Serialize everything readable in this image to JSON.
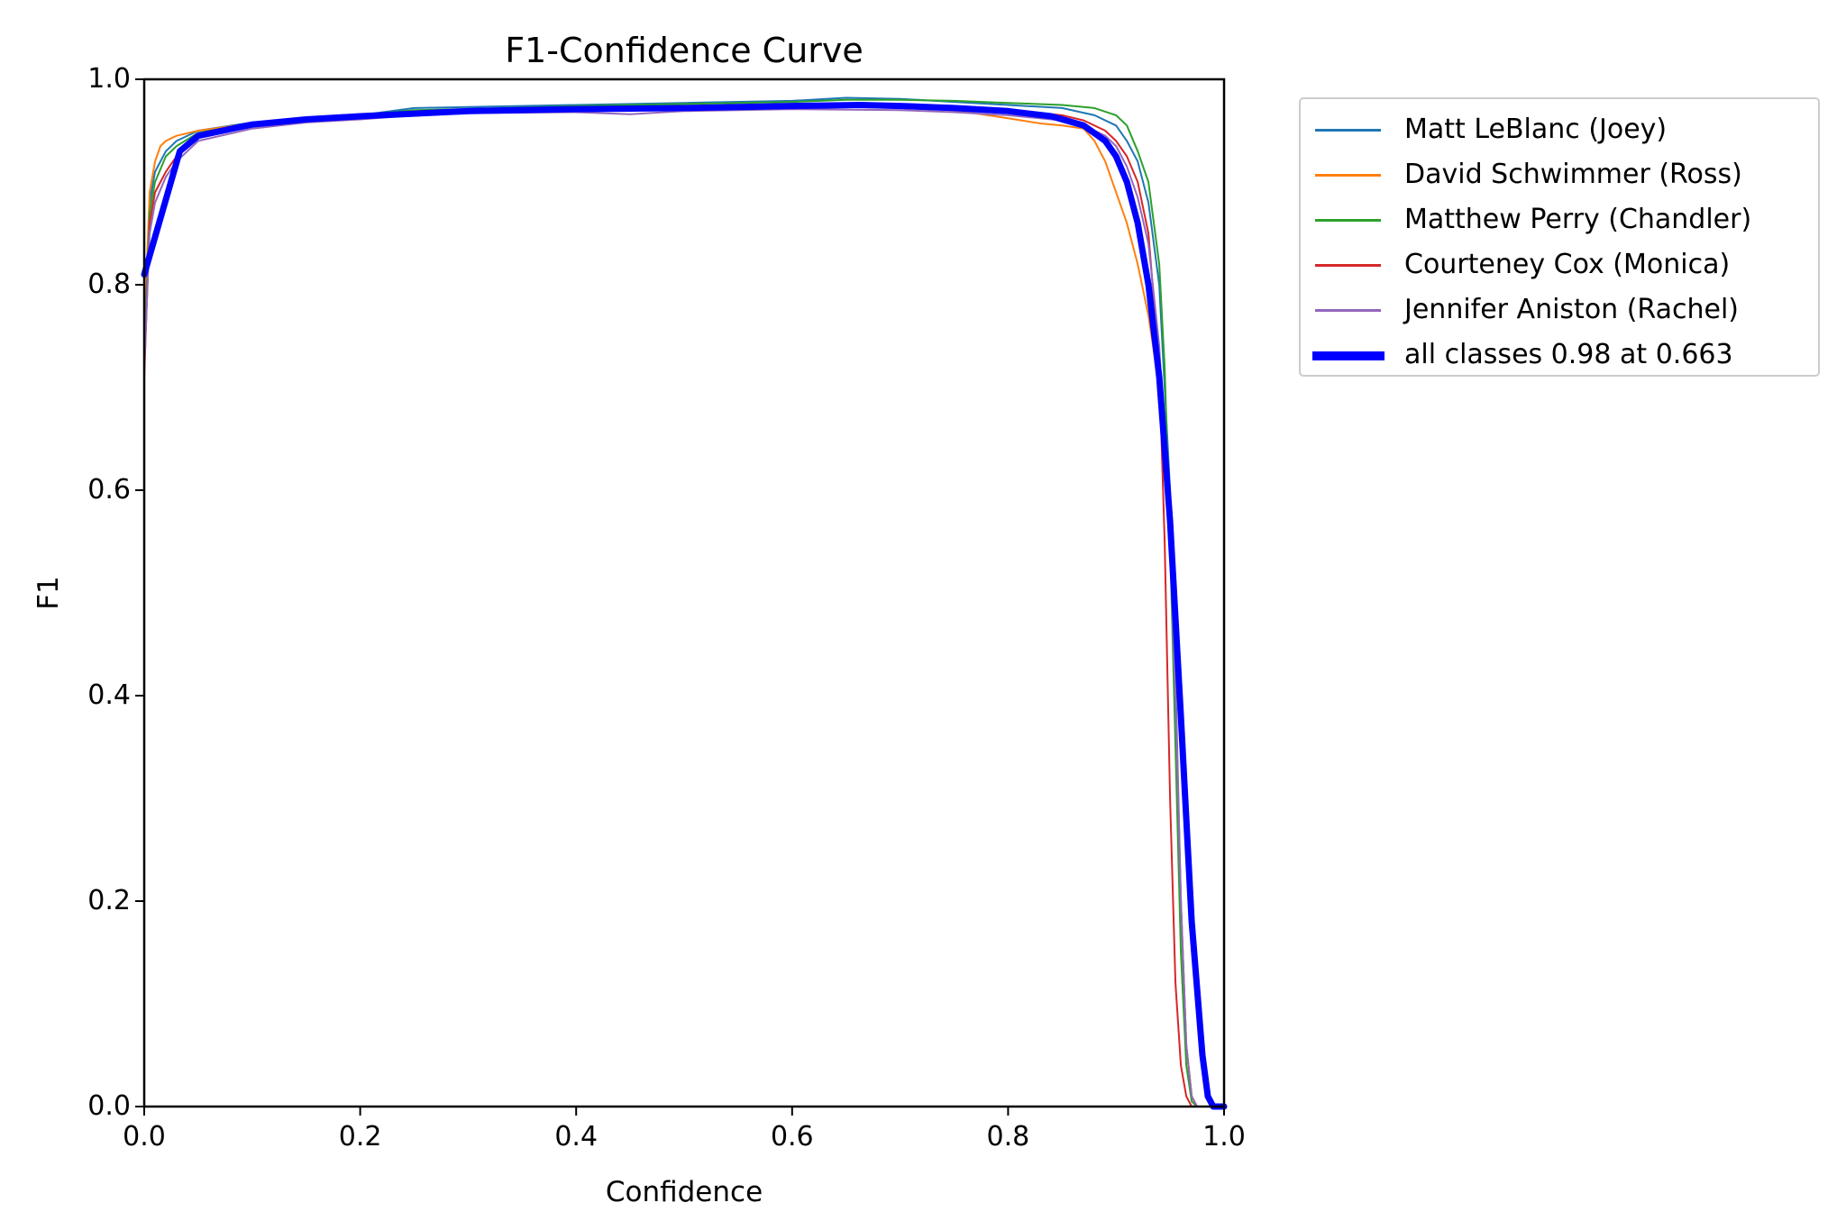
{
  "chart_data": {
    "type": "line",
    "title": "F1-Confidence Curve",
    "xlabel": "Confidence",
    "ylabel": "F1",
    "xlim": [
      0.0,
      1.0
    ],
    "ylim": [
      0.0,
      1.0
    ],
    "xticks": [
      "0.0",
      "0.2",
      "0.4",
      "0.6",
      "0.8",
      "1.0"
    ],
    "yticks": [
      "0.0",
      "0.2",
      "0.4",
      "0.6",
      "0.8",
      "1.0"
    ],
    "grid": false,
    "legend_position": "outside upper right",
    "series": [
      {
        "name": "Matt LeBlanc (Joey)",
        "color": "#1f77b4",
        "width": 2,
        "x": [
          0.0,
          0.005,
          0.01,
          0.02,
          0.03,
          0.05,
          0.1,
          0.15,
          0.2,
          0.25,
          0.3,
          0.4,
          0.5,
          0.6,
          0.65,
          0.7,
          0.75,
          0.8,
          0.85,
          0.88,
          0.9,
          0.91,
          0.92,
          0.93,
          0.94,
          0.95,
          0.955,
          0.96,
          0.965,
          0.97,
          0.975,
          1.0
        ],
        "y": [
          0.72,
          0.88,
          0.91,
          0.93,
          0.94,
          0.95,
          0.958,
          0.962,
          0.965,
          0.972,
          0.973,
          0.975,
          0.977,
          0.979,
          0.982,
          0.981,
          0.978,
          0.975,
          0.972,
          0.965,
          0.955,
          0.94,
          0.92,
          0.88,
          0.8,
          0.6,
          0.42,
          0.2,
          0.06,
          0.01,
          0.0,
          0.0
        ]
      },
      {
        "name": "David Schwimmer (Ross)",
        "color": "#ff7f0e",
        "width": 2,
        "x": [
          0.0,
          0.005,
          0.01,
          0.015,
          0.02,
          0.03,
          0.05,
          0.1,
          0.15,
          0.2,
          0.25,
          0.3,
          0.4,
          0.5,
          0.6,
          0.7,
          0.75,
          0.8,
          0.83,
          0.85,
          0.87,
          0.88,
          0.89,
          0.9,
          0.91,
          0.92,
          0.93,
          0.94,
          0.95,
          0.955,
          0.96,
          0.965,
          0.97,
          0.975,
          1.0
        ],
        "y": [
          0.75,
          0.89,
          0.92,
          0.935,
          0.94,
          0.945,
          0.95,
          0.957,
          0.96,
          0.962,
          0.966,
          0.968,
          0.97,
          0.972,
          0.974,
          0.972,
          0.97,
          0.962,
          0.957,
          0.955,
          0.952,
          0.94,
          0.92,
          0.89,
          0.86,
          0.82,
          0.77,
          0.7,
          0.55,
          0.4,
          0.2,
          0.06,
          0.01,
          0.0,
          0.0
        ]
      },
      {
        "name": "Matthew Perry (Chandler)",
        "color": "#2ca02c",
        "width": 2,
        "x": [
          0.0,
          0.005,
          0.01,
          0.02,
          0.03,
          0.05,
          0.1,
          0.15,
          0.2,
          0.25,
          0.3,
          0.4,
          0.5,
          0.6,
          0.65,
          0.7,
          0.75,
          0.8,
          0.85,
          0.88,
          0.9,
          0.91,
          0.92,
          0.93,
          0.94,
          0.945,
          0.95,
          0.955,
          0.96,
          0.965,
          0.97,
          0.975,
          1.0
        ],
        "y": [
          0.73,
          0.87,
          0.9,
          0.925,
          0.935,
          0.948,
          0.957,
          0.962,
          0.965,
          0.97,
          0.971,
          0.974,
          0.976,
          0.978,
          0.98,
          0.98,
          0.979,
          0.977,
          0.975,
          0.972,
          0.965,
          0.955,
          0.93,
          0.9,
          0.82,
          0.72,
          0.55,
          0.35,
          0.15,
          0.04,
          0.005,
          0.0,
          0.0
        ]
      },
      {
        "name": "Courteney Cox (Monica)",
        "color": "#d62728",
        "width": 2,
        "x": [
          0.0,
          0.005,
          0.01,
          0.02,
          0.03,
          0.05,
          0.1,
          0.15,
          0.2,
          0.25,
          0.3,
          0.4,
          0.5,
          0.6,
          0.7,
          0.75,
          0.8,
          0.85,
          0.87,
          0.89,
          0.9,
          0.91,
          0.92,
          0.93,
          0.94,
          0.945,
          0.95,
          0.955,
          0.96,
          0.965,
          0.97,
          1.0
        ],
        "y": [
          0.71,
          0.86,
          0.89,
          0.91,
          0.925,
          0.945,
          0.955,
          0.96,
          0.963,
          0.967,
          0.969,
          0.972,
          0.974,
          0.975,
          0.974,
          0.972,
          0.97,
          0.965,
          0.96,
          0.95,
          0.94,
          0.925,
          0.9,
          0.85,
          0.72,
          0.55,
          0.3,
          0.12,
          0.04,
          0.01,
          0.0,
          0.0
        ]
      },
      {
        "name": "Jennifer Aniston (Rachel)",
        "color": "#9467bd",
        "width": 2,
        "x": [
          0.0,
          0.005,
          0.01,
          0.02,
          0.03,
          0.05,
          0.1,
          0.15,
          0.2,
          0.25,
          0.3,
          0.4,
          0.45,
          0.5,
          0.6,
          0.7,
          0.75,
          0.8,
          0.85,
          0.87,
          0.89,
          0.9,
          0.91,
          0.92,
          0.93,
          0.94,
          0.95,
          0.955,
          0.96,
          0.965,
          0.97,
          0.975,
          1.0
        ],
        "y": [
          0.72,
          0.85,
          0.88,
          0.905,
          0.92,
          0.94,
          0.952,
          0.958,
          0.961,
          0.965,
          0.967,
          0.968,
          0.966,
          0.969,
          0.971,
          0.97,
          0.968,
          0.965,
          0.96,
          0.955,
          0.945,
          0.935,
          0.915,
          0.885,
          0.84,
          0.74,
          0.55,
          0.4,
          0.2,
          0.06,
          0.01,
          0.0,
          0.0
        ]
      },
      {
        "name": "all classes 0.98 at 0.663",
        "color": "#0000ff",
        "width": 7,
        "x": [
          0.0,
          0.033,
          0.05,
          0.1,
          0.15,
          0.2,
          0.3,
          0.4,
          0.5,
          0.6,
          0.663,
          0.7,
          0.75,
          0.8,
          0.84,
          0.87,
          0.89,
          0.9,
          0.91,
          0.92,
          0.93,
          0.94,
          0.95,
          0.96,
          0.97,
          0.98,
          0.985,
          0.99,
          1.0
        ],
        "y": [
          0.81,
          0.93,
          0.945,
          0.956,
          0.961,
          0.964,
          0.969,
          0.971,
          0.972,
          0.974,
          0.975,
          0.974,
          0.972,
          0.969,
          0.964,
          0.955,
          0.94,
          0.925,
          0.9,
          0.86,
          0.8,
          0.71,
          0.57,
          0.38,
          0.18,
          0.05,
          0.01,
          0.0,
          0.0
        ]
      }
    ]
  },
  "legend": {
    "items": [
      {
        "label": "Matt LeBlanc (Joey)",
        "color": "#1f77b4"
      },
      {
        "label": "David Schwimmer (Ross)",
        "color": "#ff7f0e"
      },
      {
        "label": "Matthew Perry (Chandler)",
        "color": "#2ca02c"
      },
      {
        "label": "Courteney Cox (Monica)",
        "color": "#d62728"
      },
      {
        "label": "Jennifer Aniston (Rachel)",
        "color": "#9467bd"
      },
      {
        "label": "all classes 0.98 at 0.663",
        "color": "#0000ff"
      }
    ]
  }
}
